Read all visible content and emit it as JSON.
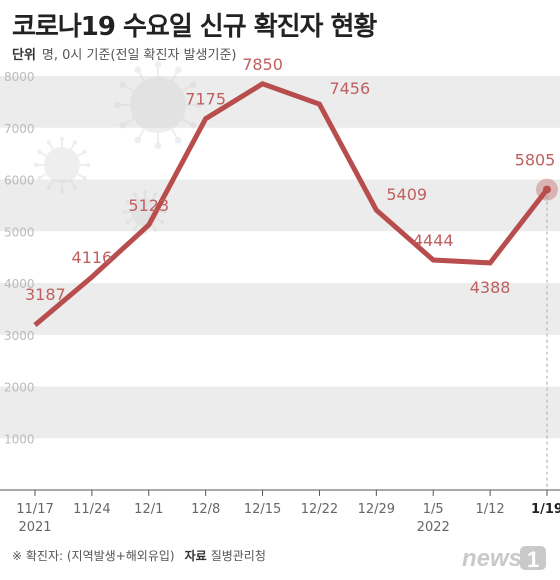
{
  "title": "코로나19 수요일 신규 확진자 현황",
  "unit_label": "단위",
  "unit_text": "명, 0시 기준(전일 확진자 발생기준)",
  "footnote": "※ 확진자: (지역발생+해외유입)",
  "source_label": "자료",
  "source": "질병관리청",
  "logo": "news1",
  "colors": {
    "line": "#b84d4d",
    "label": "#c06060",
    "band": "#ececec",
    "axis": "#555555"
  },
  "chart_data": {
    "type": "line",
    "title": "코로나19 수요일 신규 확진자 현황",
    "xlabel": "",
    "ylabel": "",
    "ylim": [
      0,
      8000
    ],
    "yticks": [
      1000,
      2000,
      3000,
      4000,
      5000,
      6000,
      7000,
      8000
    ],
    "x": [
      "11/17",
      "11/24",
      "12/1",
      "12/8",
      "12/15",
      "12/22",
      "12/29",
      "1/5",
      "1/12",
      "1/19"
    ],
    "year_labels": [
      {
        "index": 0,
        "text": "2021"
      },
      {
        "index": 7,
        "text": "2022"
      }
    ],
    "series": [
      {
        "name": "",
        "values": [
          3187,
          4116,
          5123,
          7175,
          7850,
          7456,
          5409,
          4444,
          4388,
          5805
        ]
      }
    ],
    "grid": "alternating-bands",
    "highlight_last_point": true
  }
}
